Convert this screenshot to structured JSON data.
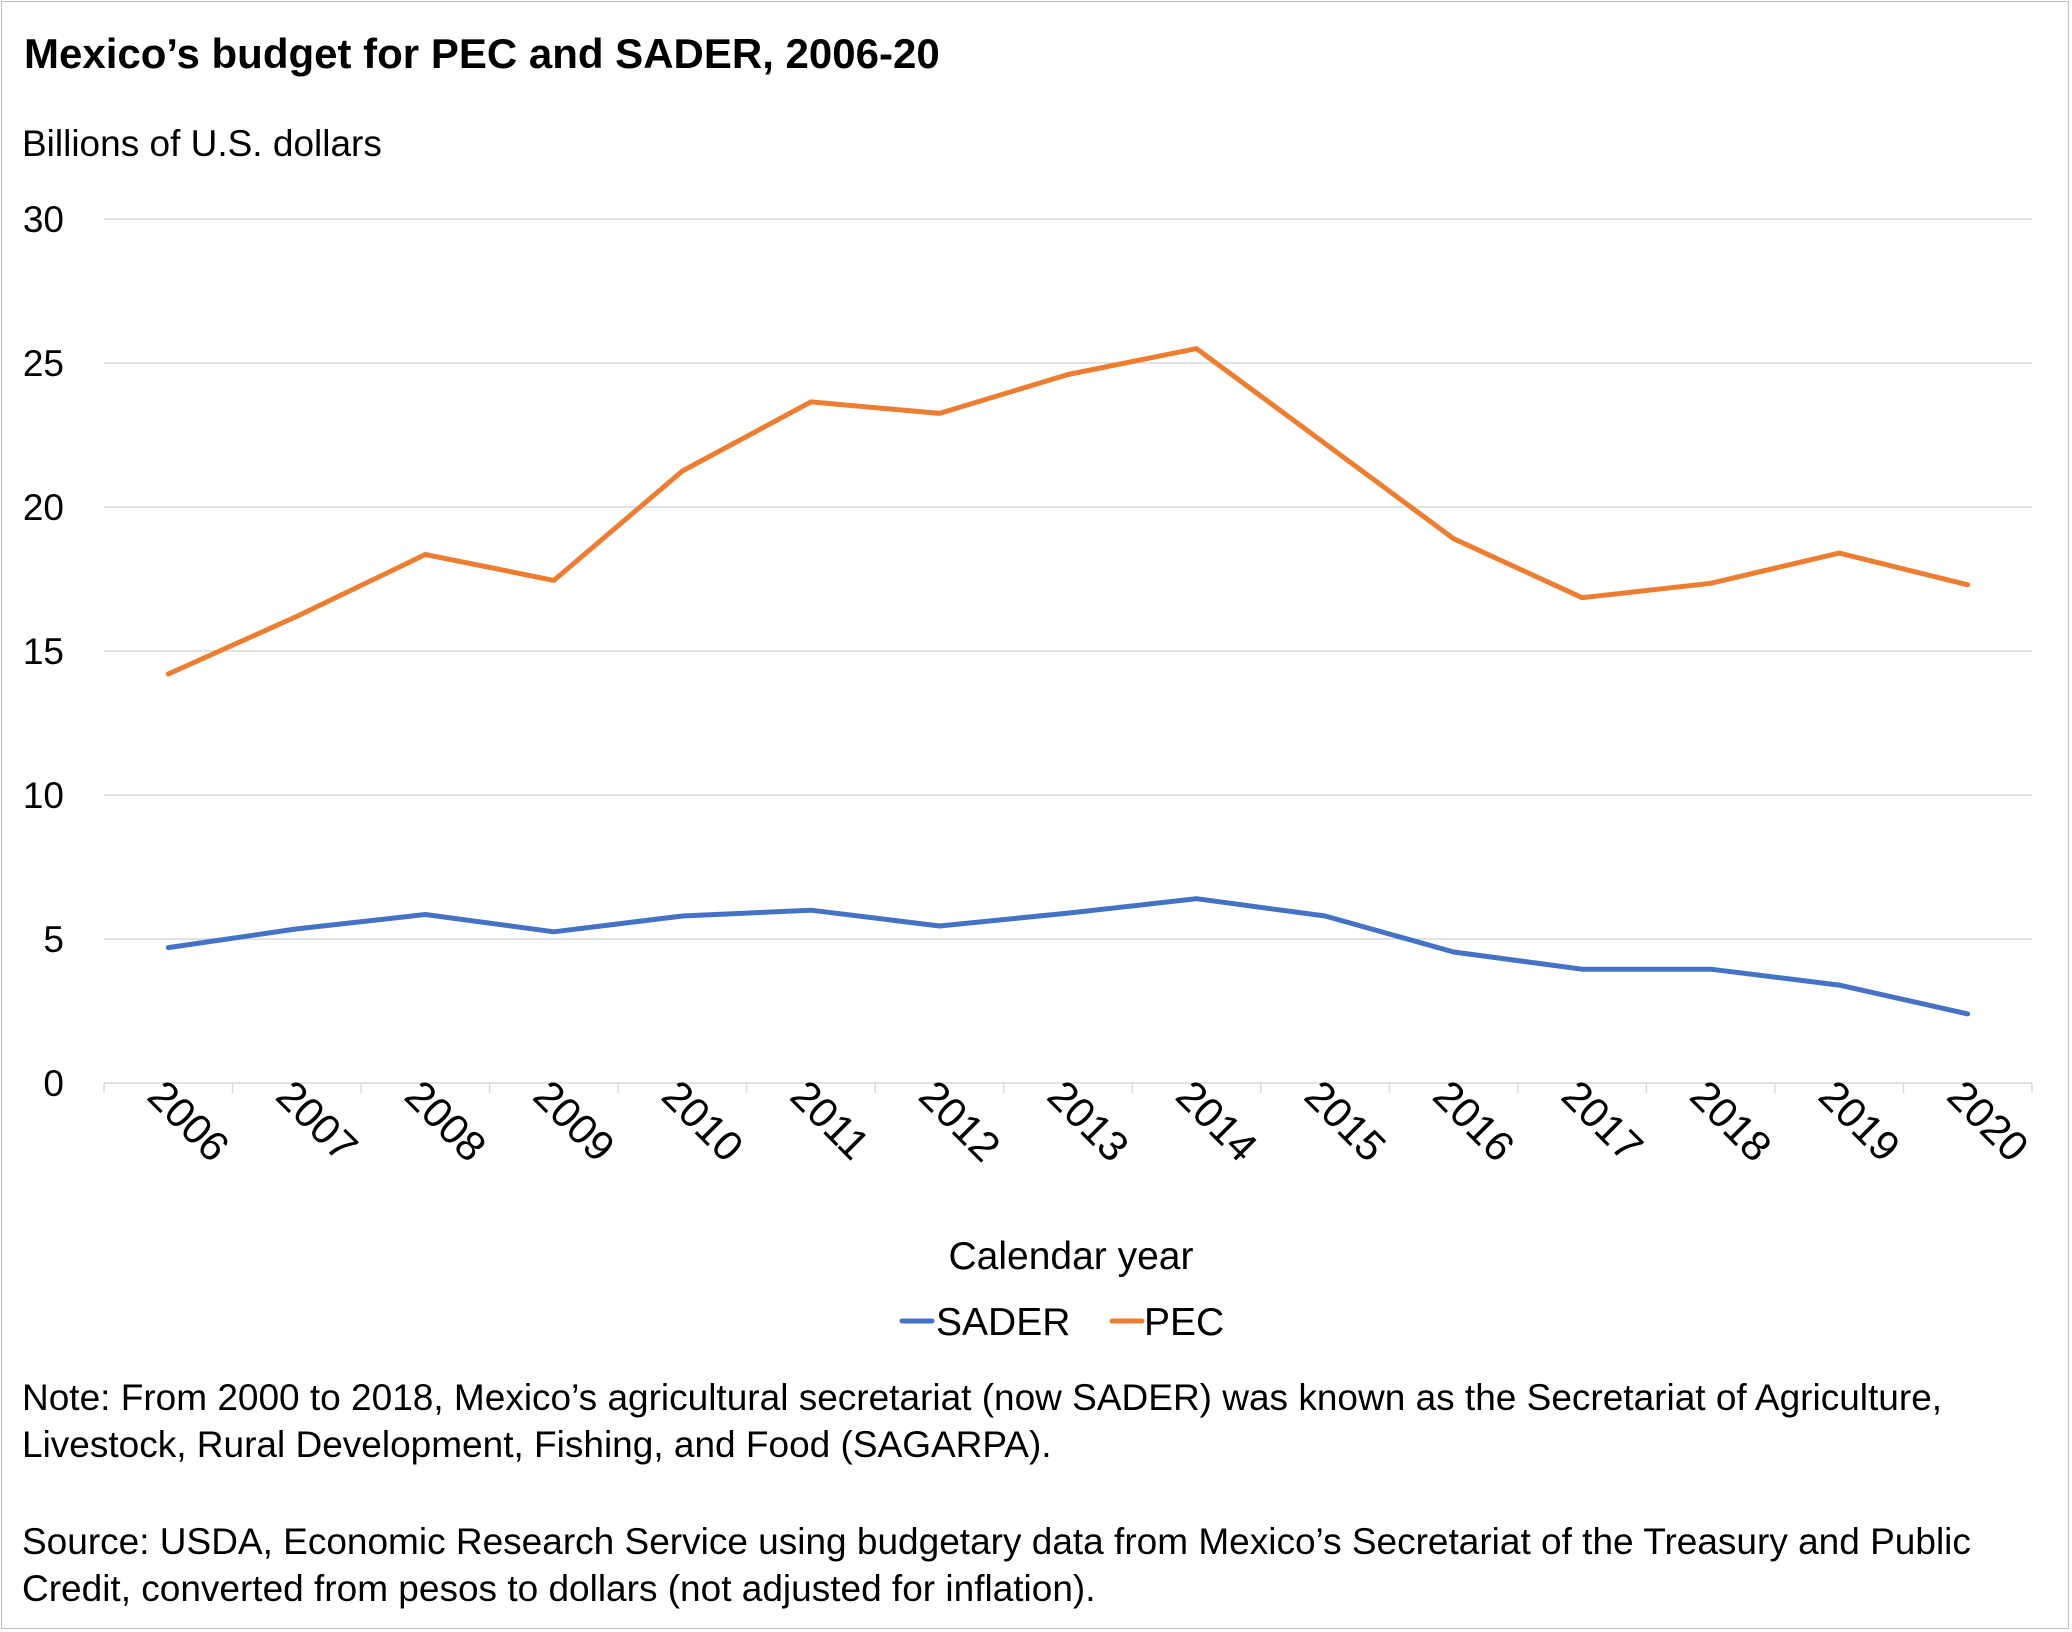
{
  "chart_data": {
    "type": "line",
    "title": "Mexico’s budget for PEC and SADER, 2006-20",
    "ylabel": "Billions of U.S. dollars",
    "xlabel": "Calendar year",
    "ylim": [
      0,
      30
    ],
    "yticks": [
      "0",
      "5",
      "10",
      "15",
      "20",
      "25",
      "30"
    ],
    "grid": true,
    "legend_position": "bottom-center",
    "categories": [
      "2006",
      "2007",
      "2008",
      "2009",
      "2010",
      "2011",
      "2012",
      "2013",
      "2014",
      "2015",
      "2016",
      "2017",
      "2018",
      "2019",
      "2020"
    ],
    "series": [
      {
        "name": "SADER",
        "color": "#4472c4",
        "values": [
          4.7,
          5.35,
          5.85,
          5.25,
          5.8,
          6.0,
          5.45,
          5.9,
          6.4,
          5.8,
          4.55,
          3.95,
          3.95,
          3.4,
          2.4
        ]
      },
      {
        "name": "PEC",
        "color": "#ed7d31",
        "values": [
          14.2,
          16.2,
          18.35,
          17.45,
          21.25,
          23.65,
          23.25,
          24.6,
          25.5,
          22.2,
          18.9,
          16.85,
          17.35,
          18.4,
          17.3
        ]
      }
    ]
  },
  "notes": {
    "note_text": "Note: From 2000 to 2018, Mexico’s agricultural secretariat (now SADER) was known as the Secretariat of Agriculture, Livestock, Rural Development, Fishing, and Food (SAGARPA).",
    "source_text": "Source: USDA, Economic Research Service using budgetary data from Mexico’s Secretariat of the Treasury and Public Credit, converted from pesos to dollars (not adjusted for inflation)."
  }
}
